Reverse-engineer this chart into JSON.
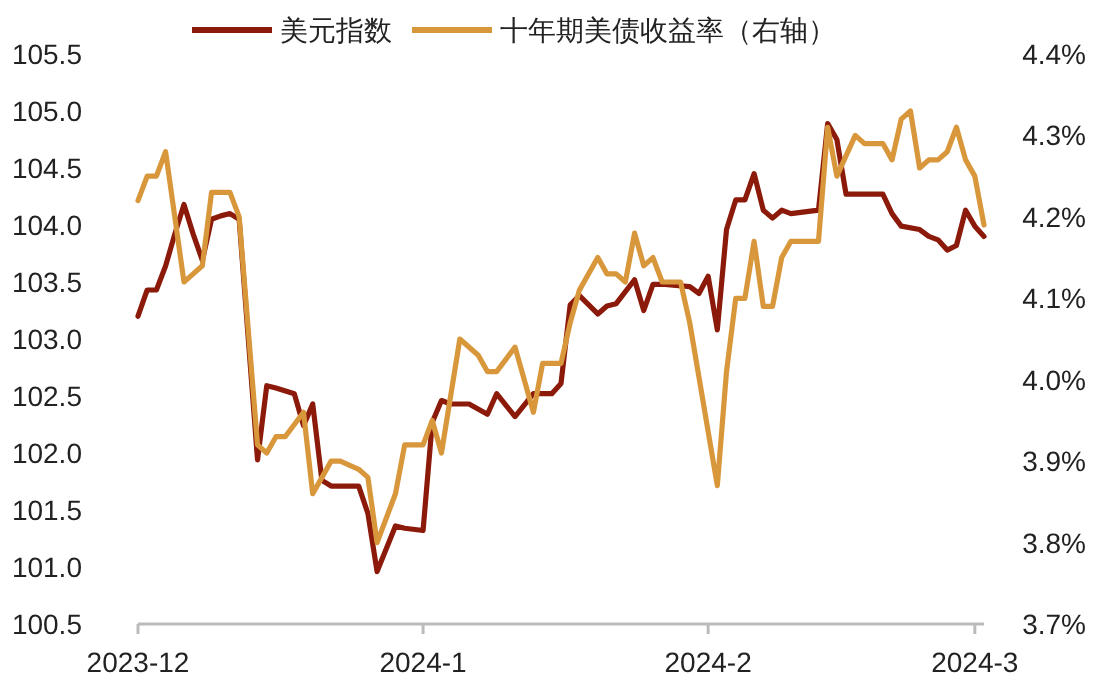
{
  "chart_data": {
    "type": "line",
    "legend": "top",
    "grid": false,
    "marker": "none",
    "line_style": "solid",
    "xlim": [
      "2023-12-01",
      "2024-03-02"
    ],
    "xticks": [
      {
        "value": "2023-12-01",
        "label": "2023-12"
      },
      {
        "value": "2024-01-01",
        "label": "2024-1"
      },
      {
        "value": "2024-02-01",
        "label": "2024-2"
      },
      {
        "value": "2024-03-01",
        "label": "2024-3"
      }
    ],
    "ylim": [
      100.5,
      105.5
    ],
    "yticks": [
      {
        "value": 100.5,
        "label": "100.5"
      },
      {
        "value": 101,
        "label": "101.0"
      },
      {
        "value": 101.5,
        "label": "101.5"
      },
      {
        "value": 102,
        "label": "102.0"
      },
      {
        "value": 102.5,
        "label": "102.5"
      },
      {
        "value": 103,
        "label": "103.0"
      },
      {
        "value": 103.5,
        "label": "103.5"
      },
      {
        "value": 104,
        "label": "104.0"
      },
      {
        "value": 104.5,
        "label": "104.5"
      },
      {
        "value": 105,
        "label": "105.0"
      },
      {
        "value": 105.5,
        "label": "105.5"
      }
    ],
    "y2lim": [
      3.7,
      4.4
    ],
    "y2ticks": [
      {
        "value": 3.7,
        "label": "3.7%"
      },
      {
        "value": 3.8,
        "label": "3.8%"
      },
      {
        "value": 3.9,
        "label": "3.9%"
      },
      {
        "value": 4.0,
        "label": "4.0%"
      },
      {
        "value": 4.1,
        "label": "4.1%"
      },
      {
        "value": 4.2,
        "label": "4.2%"
      },
      {
        "value": 4.3,
        "label": "4.3%"
      },
      {
        "value": 4.4,
        "label": "4.4%"
      }
    ],
    "series": [
      {
        "name": "美元指数",
        "color": "#8b1a0a",
        "x": [
          "2023-12-01",
          "2023-12-02",
          "2023-12-03",
          "2023-12-04",
          "2023-12-05",
          "2023-12-06",
          "2023-12-07",
          "2023-12-08",
          "2023-12-09",
          "2023-12-10",
          "2023-12-11",
          "2023-12-12",
          "2023-12-14",
          "2023-12-15",
          "2023-12-16",
          "2023-12-18",
          "2023-12-19",
          "2023-12-20",
          "2023-12-21",
          "2023-12-22",
          "2023-12-25",
          "2023-12-26",
          "2023-12-27",
          "2023-12-29",
          "2023-12-30",
          "2024-01-01",
          "2024-01-02",
          "2024-01-03",
          "2024-01-04",
          "2024-01-06",
          "2024-01-08",
          "2024-01-09",
          "2024-01-11",
          "2024-01-13",
          "2024-01-15",
          "2024-01-16",
          "2024-01-17",
          "2024-01-18",
          "2024-01-20",
          "2024-01-21",
          "2024-01-22",
          "2024-01-24",
          "2024-01-25",
          "2024-01-26",
          "2024-01-27",
          "2024-01-30",
          "2024-01-31",
          "2024-02-01",
          "2024-02-02",
          "2024-02-03",
          "2024-02-04",
          "2024-02-05",
          "2024-02-06",
          "2024-02-07",
          "2024-02-08",
          "2024-02-09",
          "2024-02-10",
          "2024-02-13",
          "2024-02-14",
          "2024-02-15",
          "2024-02-16",
          "2024-02-20",
          "2024-02-21",
          "2024-02-22",
          "2024-02-24",
          "2024-02-25",
          "2024-02-26",
          "2024-02-27",
          "2024-02-28",
          "2024-02-29",
          "2024-03-01",
          "2024-03-02"
        ],
        "values": [
          103.2,
          103.43,
          103.43,
          103.64,
          103.92,
          104.18,
          103.92,
          103.69,
          104.05,
          104.08,
          104.1,
          104.05,
          101.94,
          102.59,
          102.57,
          102.52,
          102.24,
          102.43,
          101.76,
          101.71,
          101.71,
          101.47,
          100.96,
          101.36,
          101.34,
          101.32,
          102.27,
          102.46,
          102.43,
          102.43,
          102.34,
          102.52,
          102.32,
          102.52,
          102.52,
          102.61,
          103.3,
          103.38,
          103.22,
          103.29,
          103.31,
          103.52,
          103.25,
          103.48,
          103.48,
          103.46,
          103.4,
          103.55,
          103.08,
          103.96,
          104.22,
          104.22,
          104.45,
          104.13,
          104.06,
          104.13,
          104.1,
          104.13,
          104.89,
          104.75,
          104.27,
          104.27,
          104.1,
          103.99,
          103.96,
          103.9,
          103.87,
          103.78,
          103.82,
          104.13,
          103.99,
          103.9
        ]
      },
      {
        "name": "十年期美债收益率（右轴）",
        "color": "#d9973c",
        "axis": "y2",
        "x": [
          "2023-12-01",
          "2023-12-02",
          "2023-12-03",
          "2023-12-04",
          "2023-12-06",
          "2023-12-07",
          "2023-12-08",
          "2023-12-09",
          "2023-12-11",
          "2023-12-12",
          "2023-12-14",
          "2023-12-15",
          "2023-12-16",
          "2023-12-17",
          "2023-12-19",
          "2023-12-20",
          "2023-12-22",
          "2023-12-23",
          "2023-12-25",
          "2023-12-26",
          "2023-12-27",
          "2023-12-29",
          "2023-12-30",
          "2024-01-01",
          "2024-01-02",
          "2024-01-03",
          "2024-01-05",
          "2024-01-07",
          "2024-01-08",
          "2024-01-09",
          "2024-01-11",
          "2024-01-13",
          "2024-01-14",
          "2024-01-16",
          "2024-01-17",
          "2024-01-18",
          "2024-01-20",
          "2024-01-21",
          "2024-01-22",
          "2024-01-23",
          "2024-01-24",
          "2024-01-25",
          "2024-01-26",
          "2024-01-27",
          "2024-01-29",
          "2024-01-30",
          "2024-02-02",
          "2024-02-03",
          "2024-02-04",
          "2024-02-05",
          "2024-02-06",
          "2024-02-07",
          "2024-02-08",
          "2024-02-09",
          "2024-02-10",
          "2024-02-13",
          "2024-02-14",
          "2024-02-15",
          "2024-02-17",
          "2024-02-18",
          "2024-02-20",
          "2024-02-21",
          "2024-02-22",
          "2024-02-23",
          "2024-02-24",
          "2024-02-25",
          "2024-02-26",
          "2024-02-27",
          "2024-02-28",
          "2024-02-29",
          "2024-03-01",
          "2024-03-02"
        ],
        "values": [
          4.22,
          4.25,
          4.25,
          4.28,
          4.12,
          4.13,
          4.14,
          4.23,
          4.23,
          4.2,
          3.92,
          3.91,
          3.93,
          3.93,
          3.96,
          3.86,
          3.9,
          3.9,
          3.89,
          3.88,
          3.8,
          3.86,
          3.92,
          3.92,
          3.95,
          3.91,
          4.05,
          4.03,
          4.01,
          4.01,
          4.04,
          3.96,
          4.02,
          4.02,
          4.07,
          4.11,
          4.15,
          4.13,
          4.13,
          4.12,
          4.18,
          4.14,
          4.15,
          4.12,
          4.12,
          4.07,
          3.87,
          4.01,
          4.1,
          4.1,
          4.17,
          4.09,
          4.09,
          4.15,
          4.17,
          4.17,
          4.31,
          4.25,
          4.3,
          4.29,
          4.29,
          4.27,
          4.32,
          4.33,
          4.26,
          4.27,
          4.27,
          4.28,
          4.31,
          4.27,
          4.25,
          4.19
        ]
      }
    ]
  }
}
